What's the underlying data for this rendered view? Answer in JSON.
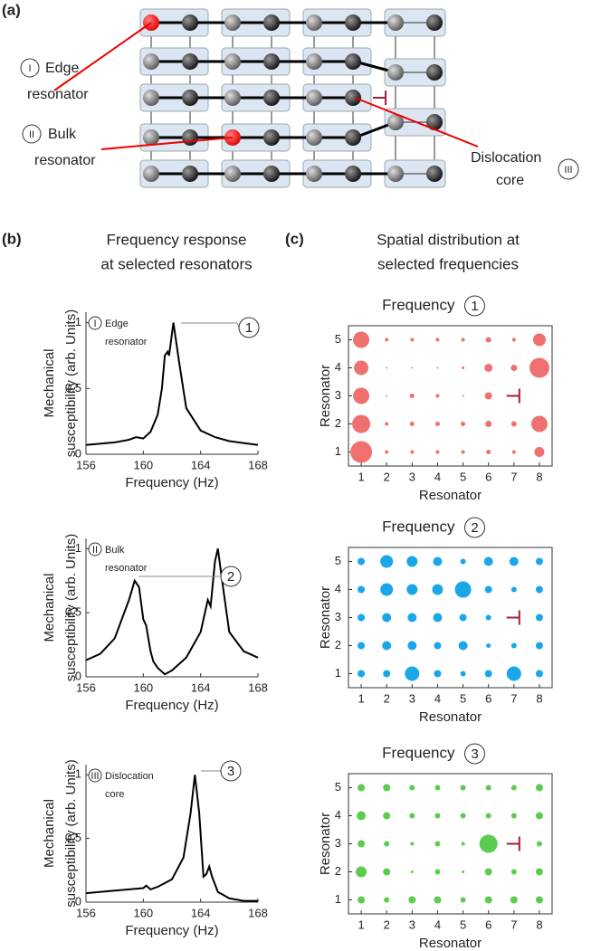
{
  "figure": {
    "panel_a": "(a)",
    "panel_b": "(b)",
    "panel_c": "(c)",
    "heading_b": [
      "Frequency response",
      "at selected resonators"
    ],
    "heading_c": [
      "Spatial distribution at",
      "selected frequencies"
    ],
    "diagram": {
      "edge": {
        "marker": "I",
        "text": [
          "Edge",
          "resonator"
        ]
      },
      "bulk": {
        "marker": "II",
        "text": [
          "Bulk",
          "resonator"
        ]
      },
      "core": {
        "marker": "III",
        "text": [
          "Dislocation",
          "core"
        ]
      }
    }
  },
  "chart_data": [
    {
      "type": "line",
      "xlabel": "Frequency (Hz)",
      "ylabel": [
        "Mechanical",
        "susceptibility (arb. Units)"
      ],
      "color": "#000000",
      "x": [
        156,
        158,
        159,
        159.5,
        160,
        160.5,
        161,
        161.3,
        161.5,
        161.7,
        161.8,
        162.1,
        162.5,
        163,
        164,
        165,
        166,
        168
      ],
      "values": [
        0.07,
        0.09,
        0.11,
        0.13,
        0.12,
        0.17,
        0.3,
        0.5,
        0.75,
        0.78,
        0.75,
        1.0,
        0.7,
        0.35,
        0.18,
        0.13,
        0.1,
        0.07
      ],
      "xlim": [
        156,
        168
      ],
      "ylim": [
        0,
        1.08
      ],
      "xticks": [
        156,
        160,
        164,
        168
      ],
      "yticks": [
        0,
        0.5,
        1
      ],
      "annotation": {
        "marker": "I",
        "text": [
          "Edge",
          "resonator"
        ]
      },
      "peak_label": "1"
    },
    {
      "type": "line",
      "xlabel": "Frequency (Hz)",
      "ylabel": [
        "Mechanical",
        "susceptibility (arb. Units)"
      ],
      "color": "#000000",
      "x": [
        156,
        157,
        158,
        159,
        159.4,
        159.7,
        160,
        160.2,
        160.5,
        160.7,
        161,
        161.5,
        162,
        163,
        164,
        164.5,
        164.7,
        165,
        165.2,
        165.5,
        166,
        167,
        168
      ],
      "values": [
        0.13,
        0.18,
        0.3,
        0.6,
        0.75,
        0.7,
        0.45,
        0.4,
        0.2,
        0.12,
        0.07,
        0.02,
        0.05,
        0.15,
        0.35,
        0.6,
        0.55,
        0.9,
        1.0,
        0.75,
        0.35,
        0.2,
        0.15
      ],
      "xlim": [
        156,
        168
      ],
      "ylim": [
        0,
        1.08
      ],
      "xticks": [
        156,
        160,
        164,
        168
      ],
      "yticks": [
        0,
        0.5,
        1
      ],
      "annotation": {
        "marker": "II",
        "text": [
          "Bulk",
          "resonator"
        ]
      },
      "peak_label": "2"
    },
    {
      "type": "line",
      "xlabel": "Frequency (Hz)",
      "ylabel": [
        "Mechanical",
        "susceptibility (arb. Units)"
      ],
      "color": "#000000",
      "x": [
        156,
        158,
        160,
        160.2,
        160.5,
        161,
        162,
        162.8,
        163.3,
        163.6,
        163.9,
        164.2,
        164.4,
        164.6,
        164.8,
        165.2,
        166,
        167,
        168
      ],
      "values": [
        0.07,
        0.09,
        0.11,
        0.13,
        0.1,
        0.12,
        0.18,
        0.35,
        0.7,
        1.0,
        0.7,
        0.2,
        0.22,
        0.28,
        0.2,
        0.08,
        0.03,
        0.01,
        0.01
      ],
      "xlim": [
        156,
        168
      ],
      "ylim": [
        0,
        1.08
      ],
      "xticks": [
        156,
        160,
        164,
        168
      ],
      "yticks": [
        0,
        0.5,
        1
      ],
      "annotation": {
        "marker": "III",
        "text": [
          "Dislocation",
          "core"
        ]
      },
      "peak_label": "3"
    },
    {
      "type": "bubble",
      "title": "Frequency",
      "title_marker": "1",
      "xlabel": "Resonator",
      "ylabel": "Resonator",
      "color": "#f07070",
      "xticks": [
        1,
        2,
        3,
        4,
        5,
        6,
        7,
        8
      ],
      "yticks": [
        1,
        2,
        3,
        4,
        5
      ],
      "xlim": [
        0.5,
        8.5
      ],
      "ylim": [
        0.5,
        5.5
      ],
      "sizes": [
        [
          12,
          2,
          2,
          2,
          2,
          2.5,
          2,
          5.5
        ],
        [
          10,
          2,
          2.5,
          2.5,
          2.5,
          3.5,
          3,
          9
        ],
        [
          9,
          1,
          2.5,
          2,
          1,
          4,
          0,
          0
        ],
        [
          8,
          1,
          1,
          1,
          1.5,
          4.5,
          3.5,
          11
        ],
        [
          9,
          2,
          2,
          2,
          2,
          3,
          2,
          7
        ]
      ]
    },
    {
      "type": "bubble",
      "title": "Frequency",
      "title_marker": "2",
      "xlabel": "Resonator",
      "ylabel": "Resonator",
      "color": "#1aa7e8",
      "xticks": [
        1,
        2,
        3,
        4,
        5,
        6,
        7,
        8
      ],
      "yticks": [
        1,
        2,
        3,
        4,
        5
      ],
      "xlim": [
        0.5,
        8.5
      ],
      "ylim": [
        0.5,
        5.5
      ],
      "sizes": [
        [
          4,
          4,
          8,
          4,
          3,
          4,
          8,
          4
        ],
        [
          4,
          5,
          5,
          4,
          5,
          2.5,
          3,
          4
        ],
        [
          4,
          5,
          5,
          5,
          4,
          3,
          0,
          4
        ],
        [
          4,
          7,
          6,
          6,
          9,
          4,
          3,
          4
        ],
        [
          4,
          7,
          6,
          5,
          3,
          5,
          5,
          4
        ]
      ]
    },
    {
      "type": "bubble",
      "title": "Frequency",
      "title_marker": "3",
      "xlabel": "Resonator",
      "ylabel": "Resonator",
      "color": "#5ccc50",
      "xticks": [
        1,
        2,
        3,
        4,
        5,
        6,
        7,
        8
      ],
      "yticks": [
        1,
        2,
        3,
        4,
        5
      ],
      "xlim": [
        0.5,
        8.5
      ],
      "ylim": [
        0.5,
        5.5
      ],
      "sizes": [
        [
          4,
          3,
          4,
          4,
          3,
          4,
          4,
          4
        ],
        [
          6,
          4,
          1.5,
          3,
          1.5,
          4,
          3,
          4
        ],
        [
          4,
          3,
          2,
          3,
          2,
          10,
          0,
          3
        ],
        [
          5,
          4,
          3,
          3,
          3,
          3,
          3,
          4
        ],
        [
          4,
          4,
          3,
          3,
          3,
          3,
          3,
          4
        ]
      ]
    }
  ]
}
